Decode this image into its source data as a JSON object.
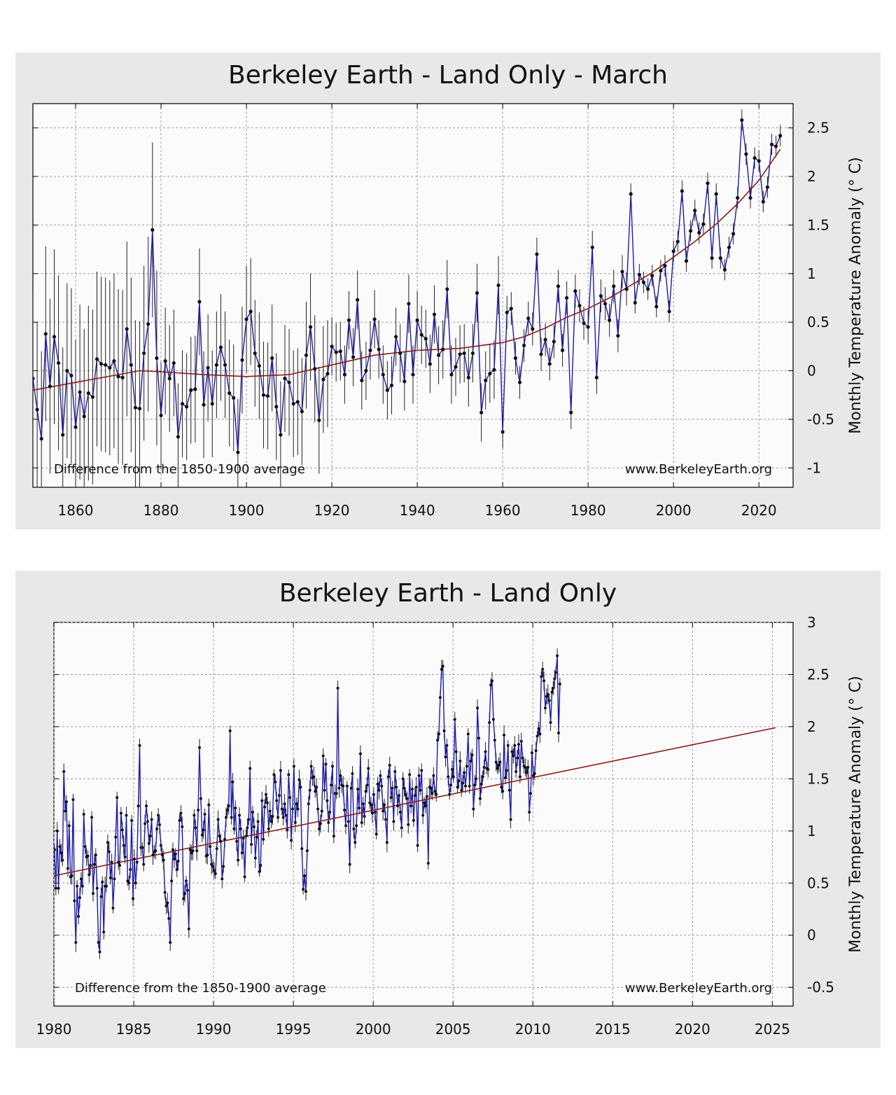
{
  "chart_data": [
    {
      "type": "line",
      "title": "Berkeley Earth - Land Only - March",
      "xlabel": "",
      "ylabel": "Monthly Temperature Anomaly (° C)",
      "annotation_left": "Difference from the 1850-1900 average",
      "annotation_right": "www.BerkeleyEarth.org",
      "xlim": [
        1850,
        2028
      ],
      "ylim": [
        -1.2,
        2.75
      ],
      "x_ticks": [
        "1860",
        "1880",
        "1900",
        "1920",
        "1940",
        "1960",
        "1980",
        "2000",
        "2020"
      ],
      "y_ticks": [
        "2.5",
        "2",
        "1.5",
        "1",
        "0.5",
        "0",
        "-0.5",
        "-1"
      ],
      "grid": true,
      "colors": {
        "series": "#1a1aa8",
        "trend": "#8b1a1a",
        "marker": "#111111",
        "errorbar": "#222222",
        "background": "#fbfbfb",
        "panel": "#e8e8e8"
      },
      "series": [
        {
          "x": [
            1850,
            1851,
            1852,
            1853,
            1854,
            1855,
            1856,
            1857,
            1858,
            1859,
            1860,
            1861,
            1862,
            1863,
            1864,
            1865,
            1866,
            1867,
            1868,
            1869,
            1870,
            1871,
            1872,
            1873,
            1874,
            1875,
            1876,
            1877,
            1878,
            1879,
            1880,
            1881,
            1882,
            1883,
            1884,
            1885,
            1886,
            1887,
            1888,
            1889,
            1890,
            1891,
            1892,
            1893,
            1894,
            1895,
            1896,
            1897,
            1898,
            1899,
            1900,
            1901,
            1902,
            1903,
            1904,
            1905,
            1906,
            1907,
            1908,
            1909,
            1910,
            1911,
            1912,
            1913,
            1914,
            1915,
            1916,
            1917,
            1918,
            1919,
            1920,
            1921,
            1922,
            1923,
            1924,
            1925,
            1926,
            1927,
            1928,
            1929,
            1930,
            1931,
            1932,
            1933,
            1934,
            1935,
            1936,
            1937,
            1938,
            1939,
            1940,
            1941,
            1942,
            1943,
            1944,
            1945,
            1946,
            1947,
            1948,
            1949,
            1950,
            1951,
            1952,
            1953,
            1954,
            1955,
            1956,
            1957,
            1958,
            1959,
            1960,
            1961,
            1962,
            1963,
            1964,
            1965,
            1966,
            1967,
            1968,
            1969,
            1970,
            1971,
            1972,
            1973,
            1974,
            1975,
            1976,
            1977,
            1978,
            1979,
            1980,
            1981,
            1982,
            1983,
            1984,
            1985,
            1986,
            1987,
            1988,
            1989,
            1990,
            1991,
            1992,
            1993,
            1994,
            1995,
            1996,
            1997,
            1998,
            1999,
            2000,
            2001,
            2002,
            2003,
            2004,
            2005,
            2006,
            2007,
            2008,
            2009,
            2010,
            2011,
            2012,
            2013,
            2014,
            2015,
            2016,
            2017,
            2018,
            2019,
            2020,
            2021,
            2022,
            2023,
            2024,
            2025
          ],
          "y": [
            -0.08,
            -0.4,
            -0.7,
            0.38,
            -0.16,
            0.35,
            0.08,
            -0.66,
            0.0,
            -0.05,
            -0.58,
            -0.22,
            -0.47,
            -0.23,
            -0.27,
            0.12,
            0.07,
            0.06,
            0.03,
            0.1,
            -0.06,
            -0.07,
            0.43,
            0.06,
            -0.38,
            -0.39,
            0.18,
            0.48,
            1.45,
            0.13,
            -0.46,
            0.1,
            -0.08,
            0.08,
            -0.68,
            -0.34,
            -0.37,
            -0.2,
            -0.19,
            0.71,
            -0.35,
            0.03,
            -0.34,
            0.06,
            0.24,
            0.06,
            -0.23,
            -0.28,
            -0.84,
            0.11,
            0.53,
            0.61,
            0.18,
            0.05,
            -0.25,
            -0.26,
            0.13,
            -0.37,
            -0.66,
            -0.08,
            -0.12,
            -0.34,
            -0.32,
            -0.42,
            0.16,
            0.45,
            0.02,
            -0.51,
            -0.09,
            -0.03,
            0.25,
            0.19,
            0.2,
            -0.04,
            0.52,
            0.14,
            0.73,
            -0.1,
            0.0,
            0.21,
            0.53,
            0.22,
            -0.04,
            -0.2,
            -0.15,
            0.35,
            0.18,
            -0.11,
            0.69,
            -0.04,
            0.52,
            0.37,
            0.33,
            0.07,
            0.58,
            0.16,
            0.22,
            0.84,
            -0.04,
            0.04,
            0.17,
            0.18,
            -0.07,
            0.18,
            0.8,
            -0.43,
            -0.1,
            -0.03,
            0.01,
            0.88,
            -0.63,
            0.6,
            0.64,
            0.13,
            -0.12,
            0.26,
            0.54,
            0.43,
            1.2,
            0.17,
            0.32,
            0.07,
            0.3,
            0.87,
            0.21,
            0.75,
            -0.43,
            0.82,
            0.67,
            0.49,
            0.45,
            1.27,
            -0.07,
            0.77,
            0.69,
            0.52,
            0.87,
            0.36,
            1.02,
            0.84,
            1.82,
            0.7,
            0.99,
            0.91,
            0.84,
            0.98,
            0.66,
            1.03,
            1.08,
            0.61,
            1.23,
            1.33,
            1.85,
            1.13,
            1.44,
            1.65,
            1.42,
            1.51,
            1.93,
            1.16,
            1.82,
            1.16,
            1.04,
            1.27,
            1.41,
            1.78,
            2.58,
            2.23,
            1.78,
            2.19,
            2.16,
            1.74,
            1.89,
            2.33,
            2.31,
            2.42
          ]
        }
      ],
      "trend": {
        "x": [
          1850,
          1860,
          1870,
          1875,
          1880,
          1890,
          1900,
          1910,
          1920,
          1930,
          1940,
          1950,
          1960,
          1965,
          1970,
          1975,
          1980,
          1985,
          1990,
          1995,
          2000,
          2005,
          2010,
          2015,
          2020,
          2025
        ],
        "y": [
          -0.2,
          -0.12,
          -0.04,
          0.0,
          -0.01,
          -0.04,
          -0.06,
          -0.04,
          0.06,
          0.16,
          0.21,
          0.23,
          0.29,
          0.35,
          0.44,
          0.55,
          0.64,
          0.75,
          0.88,
          1.01,
          1.17,
          1.33,
          1.51,
          1.72,
          1.96,
          2.28
        ]
      }
    },
    {
      "type": "line",
      "title": "Berkeley Earth - Land Only",
      "xlabel": "",
      "ylabel": "Monthly Temperature Anomaly (° C)",
      "annotation_left": "Difference from the 1850-1900 average",
      "annotation_right": "www.BerkeleyEarth.org",
      "xlim": [
        1980,
        2026.3
      ],
      "ylim": [
        -0.68,
        3.0
      ],
      "x_ticks": [
        "1980",
        "1985",
        "1990",
        "1995",
        "2000",
        "2005",
        "2010",
        "2015",
        "2020",
        "2025"
      ],
      "y_ticks": [
        "3",
        "2.5",
        "2",
        "1.5",
        "1",
        "0.5",
        "0",
        "-0.5"
      ],
      "grid": true,
      "series": [
        {
          "x_start": 1980.04,
          "x_step": 0.0833,
          "y": [
            0.82,
            0.45,
            1.0,
            0.45,
            0.85,
            0.79,
            0.72,
            1.57,
            1.19,
            1.28,
            0.64,
            1.05,
            0.56,
            0.57,
            1.3,
            0.33,
            -0.07,
            0.47,
            0.18,
            0.36,
            0.54,
            0.47,
            1.16,
            0.85,
            0.75,
            0.76,
            0.58,
            0.67,
            1.13,
            0.4,
            0.68,
            0.77,
            0.45,
            -0.07,
            -0.16,
            0.37,
            0.51,
            0.03,
            0.47,
            0.47,
            0.89,
            0.8,
            0.55,
            0.7,
            0.26,
            0.54,
            0.94,
            1.32,
            0.7,
            0.67,
            1.17,
            1.01,
            0.86,
            0.75,
            1.15,
            0.52,
            0.5,
            0.63,
            1.1,
            0.35,
            0.73,
            0.5,
            0.7,
            1.24,
            1.82,
            0.84,
            0.84,
            0.68,
            1.07,
            1.24,
            1.09,
            0.88,
            0.95,
            1.11,
            0.77,
            0.8,
            0.81,
            1.02,
            1.15,
            1.06,
            0.86,
            0.77,
            0.72,
            0.41,
            0.28,
            0.31,
            0.16,
            -0.07,
            0.52,
            0.82,
            0.73,
            0.78,
            0.63,
            0.71,
            1.1,
            1.17,
            1.04,
            0.35,
            0.4,
            0.52,
            0.43,
            0.06,
            0.82,
            0.79,
            0.81,
            1.15,
            1.03,
            0.81,
            1.2,
            1.8,
            1.31,
            0.96,
            1.01,
            1.16,
            0.76,
            0.77,
            1.25,
            0.85,
            0.68,
            0.66,
            0.62,
            0.59,
            0.83,
            1.11,
            0.95,
            0.9,
            0.54,
            0.66,
            0.92,
            1.13,
            1.2,
            1.24,
            1.96,
            1.13,
            1.47,
            1.02,
            1.22,
            0.9,
            0.72,
            1.15,
            1.02,
            0.79,
            0.93,
            0.56,
            0.95,
            1.03,
            1.11,
            1.6,
            0.87,
            1.18,
            1.04,
            0.74,
            0.94,
            1.09,
            0.61,
            0.67,
            1.29,
            0.92,
            1.23,
            1.35,
            1.27,
            1.02,
            1.19,
            1.09,
            1.14,
            1.54,
            1.47,
            1.29,
            1.13,
            1.34,
            1.58,
            1.21,
            1.13,
            1.26,
            1.15,
            1.01,
            1.54,
            1.32,
            0.91,
            1.21,
            1.62,
            1.08,
            1.26,
            1.21,
            1.49,
            1.42,
            0.83,
            0.44,
            0.57,
            0.42,
            0.81,
            1.26,
            1.39,
            1.62,
            1.51,
            1.52,
            1.38,
            1.42,
            1.21,
            1.02,
            1.07,
            1.19,
            1.72,
            1.39,
            1.64,
            1.29,
            1.08,
            1.18,
            1.44,
            1.62,
            0.95,
            1.36,
            1.36,
            2.37,
            1.41,
            1.53,
            1.44,
            1.43,
            1.2,
            1.05,
            1.43,
            1.09,
            0.68,
            1.41,
            1.55,
            1.02,
            0.89,
            1.05,
            1.4,
            1.22,
            1.74,
            1.08,
            1.26,
            1.14,
            1.38,
            1.44,
            1.6,
            1.27,
            1.25,
            1.17,
            1.35,
            1.18,
            0.97,
            1.45,
            1.39,
            1.53,
            1.43,
            1.19,
            1.25,
            1.11,
            0.89,
            1.52,
            1.63,
            1.32,
            1.41,
            1.09,
            1.57,
            1.42,
            1.24,
            1.34,
            1.18,
            1.03,
            1.5,
            1.41,
            1.35,
            1.31,
            1.06,
            1.54,
            1.24,
            1.4,
            1.1,
            1.34,
            1.42,
            0.86,
            1.53,
            1.39,
            1.58,
            1.15,
            1.27,
            1.24,
            1.33,
            0.69,
            1.42,
            1.41,
            1.36,
            1.53,
            1.38,
            1.35,
            1.87,
            1.93,
            2.28,
            2.55,
            2.58,
            1.96,
            1.71,
            1.82,
            1.52,
            1.35,
            1.44,
            1.59,
            1.52,
            2.07,
            1.76,
            1.42,
            1.48,
            1.67,
            1.39,
            1.46,
            1.56,
            1.43,
            1.62,
            1.93,
            1.43,
            1.67,
            1.73,
            1.21,
            1.44,
            1.5,
            2.18,
            1.89,
            1.31,
            1.45,
            1.52,
            1.61,
            1.76,
            1.6,
            1.59,
            2.04,
            2.4,
            2.44,
            2.07,
            1.87,
            1.66,
            1.6,
            1.63,
            1.66,
            1.42,
            1.38,
            1.92,
            1.51,
            1.58,
            1.82,
            1.39,
            1.11,
            1.76,
            1.72,
            1.82,
            1.57,
            1.7,
            1.83,
            1.52,
            1.86,
            1.7,
            1.62,
            1.61,
            1.56,
            1.61,
            1.18,
            1.36,
            1.75,
            1.53,
            1.55,
            1.77,
            1.91,
            1.98,
            1.93,
            2.48,
            2.55,
            2.44,
            2.18,
            2.29,
            2.31,
            2.25,
            2.04,
            2.33,
            2.37,
            2.46,
            2.52,
            2.68,
            1.94,
            2.41
          ]
        }
      ],
      "trend": {
        "x": [
          1980,
          2025.2
        ],
        "y": [
          0.57,
          1.99
        ]
      }
    }
  ]
}
